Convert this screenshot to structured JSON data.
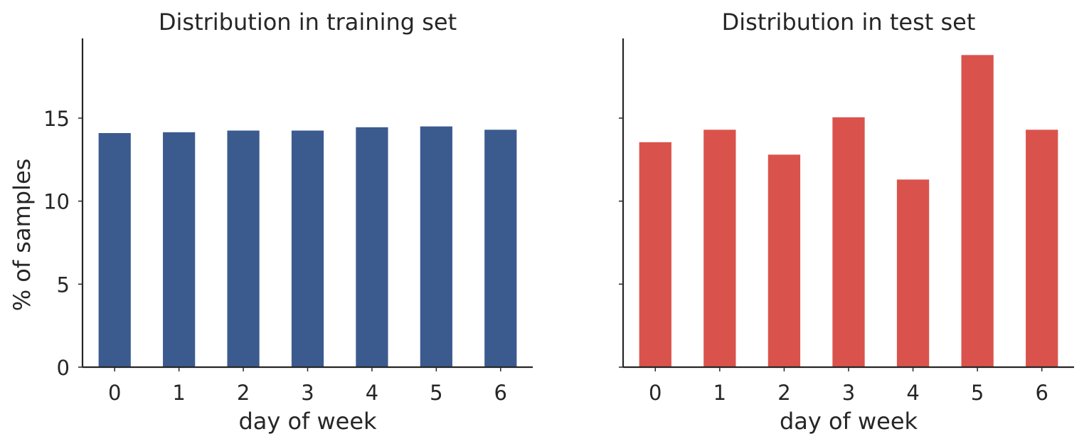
{
  "chart_data": [
    {
      "type": "bar",
      "title": "Distribution in training set",
      "xlabel": "day of week",
      "ylabel": "% of samples",
      "categories": [
        "0",
        "1",
        "2",
        "3",
        "4",
        "5",
        "6"
      ],
      "values": [
        14.1,
        14.15,
        14.25,
        14.25,
        14.45,
        14.5,
        14.3
      ],
      "ylim": [
        0,
        19.8
      ],
      "yticks": [
        0,
        5,
        10,
        15
      ],
      "ytick_labels": [
        "0",
        "5",
        "10",
        "15"
      ],
      "color": "#3b5b8f",
      "grid": false,
      "show_yticklabels": true
    },
    {
      "type": "bar",
      "title": "Distribution in test set",
      "xlabel": "day of week",
      "ylabel": "",
      "categories": [
        "0",
        "1",
        "2",
        "3",
        "4",
        "5",
        "6"
      ],
      "values": [
        13.55,
        14.3,
        12.8,
        15.05,
        11.3,
        18.8,
        14.3
      ],
      "ylim": [
        0,
        19.8
      ],
      "yticks": [
        0,
        5,
        10,
        15
      ],
      "ytick_labels": [],
      "color": "#d9534c",
      "grid": false,
      "show_yticklabels": false
    }
  ]
}
